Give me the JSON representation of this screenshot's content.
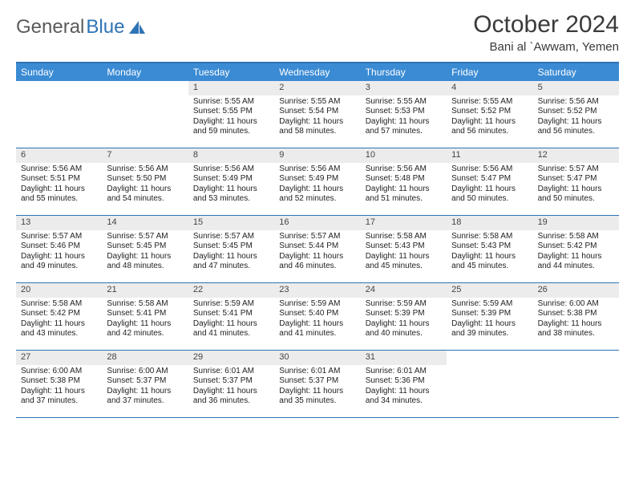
{
  "brand": {
    "word1": "General",
    "word2": "Blue"
  },
  "title": "October 2024",
  "location": "Bani al `Awwam, Yemen",
  "colors": {
    "header_bg": "#3b8bd4",
    "border": "#2e74b5",
    "daynum_bg": "#ececec",
    "text": "#222222",
    "brand_gray": "#5a5a5a",
    "brand_blue": "#2e74b5"
  },
  "day_names": [
    "Sunday",
    "Monday",
    "Tuesday",
    "Wednesday",
    "Thursday",
    "Friday",
    "Saturday"
  ],
  "first_weekday_index": 2,
  "days": [
    {
      "n": 1,
      "sunrise": "5:55 AM",
      "sunset": "5:55 PM",
      "daylight": "11 hours and 59 minutes."
    },
    {
      "n": 2,
      "sunrise": "5:55 AM",
      "sunset": "5:54 PM",
      "daylight": "11 hours and 58 minutes."
    },
    {
      "n": 3,
      "sunrise": "5:55 AM",
      "sunset": "5:53 PM",
      "daylight": "11 hours and 57 minutes."
    },
    {
      "n": 4,
      "sunrise": "5:55 AM",
      "sunset": "5:52 PM",
      "daylight": "11 hours and 56 minutes."
    },
    {
      "n": 5,
      "sunrise": "5:56 AM",
      "sunset": "5:52 PM",
      "daylight": "11 hours and 56 minutes."
    },
    {
      "n": 6,
      "sunrise": "5:56 AM",
      "sunset": "5:51 PM",
      "daylight": "11 hours and 55 minutes."
    },
    {
      "n": 7,
      "sunrise": "5:56 AM",
      "sunset": "5:50 PM",
      "daylight": "11 hours and 54 minutes."
    },
    {
      "n": 8,
      "sunrise": "5:56 AM",
      "sunset": "5:49 PM",
      "daylight": "11 hours and 53 minutes."
    },
    {
      "n": 9,
      "sunrise": "5:56 AM",
      "sunset": "5:49 PM",
      "daylight": "11 hours and 52 minutes."
    },
    {
      "n": 10,
      "sunrise": "5:56 AM",
      "sunset": "5:48 PM",
      "daylight": "11 hours and 51 minutes."
    },
    {
      "n": 11,
      "sunrise": "5:56 AM",
      "sunset": "5:47 PM",
      "daylight": "11 hours and 50 minutes."
    },
    {
      "n": 12,
      "sunrise": "5:57 AM",
      "sunset": "5:47 PM",
      "daylight": "11 hours and 50 minutes."
    },
    {
      "n": 13,
      "sunrise": "5:57 AM",
      "sunset": "5:46 PM",
      "daylight": "11 hours and 49 minutes."
    },
    {
      "n": 14,
      "sunrise": "5:57 AM",
      "sunset": "5:45 PM",
      "daylight": "11 hours and 48 minutes."
    },
    {
      "n": 15,
      "sunrise": "5:57 AM",
      "sunset": "5:45 PM",
      "daylight": "11 hours and 47 minutes."
    },
    {
      "n": 16,
      "sunrise": "5:57 AM",
      "sunset": "5:44 PM",
      "daylight": "11 hours and 46 minutes."
    },
    {
      "n": 17,
      "sunrise": "5:58 AM",
      "sunset": "5:43 PM",
      "daylight": "11 hours and 45 minutes."
    },
    {
      "n": 18,
      "sunrise": "5:58 AM",
      "sunset": "5:43 PM",
      "daylight": "11 hours and 45 minutes."
    },
    {
      "n": 19,
      "sunrise": "5:58 AM",
      "sunset": "5:42 PM",
      "daylight": "11 hours and 44 minutes."
    },
    {
      "n": 20,
      "sunrise": "5:58 AM",
      "sunset": "5:42 PM",
      "daylight": "11 hours and 43 minutes."
    },
    {
      "n": 21,
      "sunrise": "5:58 AM",
      "sunset": "5:41 PM",
      "daylight": "11 hours and 42 minutes."
    },
    {
      "n": 22,
      "sunrise": "5:59 AM",
      "sunset": "5:41 PM",
      "daylight": "11 hours and 41 minutes."
    },
    {
      "n": 23,
      "sunrise": "5:59 AM",
      "sunset": "5:40 PM",
      "daylight": "11 hours and 41 minutes."
    },
    {
      "n": 24,
      "sunrise": "5:59 AM",
      "sunset": "5:39 PM",
      "daylight": "11 hours and 40 minutes."
    },
    {
      "n": 25,
      "sunrise": "5:59 AM",
      "sunset": "5:39 PM",
      "daylight": "11 hours and 39 minutes."
    },
    {
      "n": 26,
      "sunrise": "6:00 AM",
      "sunset": "5:38 PM",
      "daylight": "11 hours and 38 minutes."
    },
    {
      "n": 27,
      "sunrise": "6:00 AM",
      "sunset": "5:38 PM",
      "daylight": "11 hours and 37 minutes."
    },
    {
      "n": 28,
      "sunrise": "6:00 AM",
      "sunset": "5:37 PM",
      "daylight": "11 hours and 37 minutes."
    },
    {
      "n": 29,
      "sunrise": "6:01 AM",
      "sunset": "5:37 PM",
      "daylight": "11 hours and 36 minutes."
    },
    {
      "n": 30,
      "sunrise": "6:01 AM",
      "sunset": "5:37 PM",
      "daylight": "11 hours and 35 minutes."
    },
    {
      "n": 31,
      "sunrise": "6:01 AM",
      "sunset": "5:36 PM",
      "daylight": "11 hours and 34 minutes."
    }
  ],
  "labels": {
    "sunrise": "Sunrise:",
    "sunset": "Sunset:",
    "daylight": "Daylight:"
  }
}
